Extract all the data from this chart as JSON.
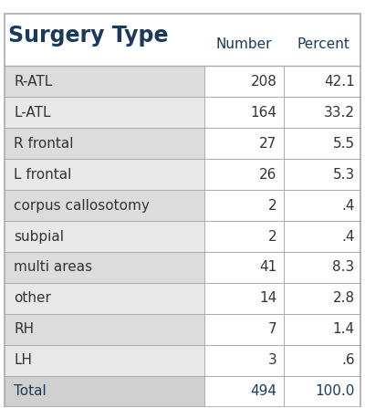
{
  "title": "Surgery Type",
  "col_headers": [
    "Number",
    "Percent"
  ],
  "rows": [
    [
      "R-ATL",
      "208",
      "42.1"
    ],
    [
      "L-ATL",
      "164",
      "33.2"
    ],
    [
      "R frontal",
      "27",
      "5.5"
    ],
    [
      "L frontal",
      "26",
      "5.3"
    ],
    [
      "corpus callosotomy",
      "2",
      ".4"
    ],
    [
      "subpial",
      "2",
      ".4"
    ],
    [
      "multi areas",
      "41",
      "8.3"
    ],
    [
      "other",
      "14",
      "2.8"
    ],
    [
      "RH",
      "7",
      "1.4"
    ],
    [
      "LH",
      "3",
      ".6"
    ],
    [
      "Total",
      "494",
      "100.0"
    ]
  ],
  "title_color": "#1a3a5c",
  "header_text_color": "#1a3a5c",
  "row_text_color": "#333333",
  "total_text_color": "#1a3a5c",
  "bg_color": "#ffffff",
  "row_bg_even": "#dcdcdc",
  "row_bg_odd": "#e8e8e8",
  "total_bg": "#d0d0d0",
  "header_bg": "#ffffff",
  "border_color": "#aaaaaa",
  "title_fontsize": 17,
  "header_fontsize": 11,
  "row_fontsize": 11,
  "fig_width": 4.0,
  "fig_height": 4.47
}
